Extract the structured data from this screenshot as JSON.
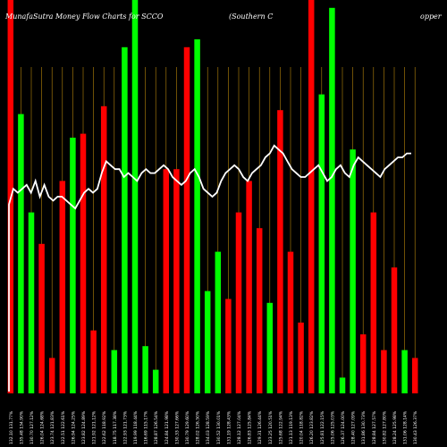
{
  "chart_data": {
    "type": "bar",
    "title": "MunafaSutra  Money Flow  Charts for SCCO",
    "subtitle": "(Southern  C",
    "title_tail": "opper",
    "background": "#000000",
    "colors": {
      "up": "#00ff00",
      "down": "#ff0000",
      "line": "#ffffff",
      "grid": "#b8860b"
    },
    "grid": true,
    "ylim": [
      0,
      100
    ],
    "bars": [
      {
        "label": "132.10 131.77%",
        "value": 100,
        "dir": "down"
      },
      {
        "label": "135.48 134.90%",
        "value": 71,
        "dir": "up"
      },
      {
        "label": "130.70 127.12%",
        "value": 46,
        "dir": "up"
      },
      {
        "label": "126.04 124.68%",
        "value": 38,
        "dir": "down"
      },
      {
        "label": "123.74 121.83%",
        "value": 9,
        "dir": "down"
      },
      {
        "label": "122.51 122.61%",
        "value": 54,
        "dir": "down"
      },
      {
        "label": "126.94 124.25%",
        "value": 65,
        "dir": "up"
      },
      {
        "label": "123.82 124.89%",
        "value": 66,
        "dir": "down"
      },
      {
        "label": "121.92 121.12%",
        "value": 16,
        "dir": "down"
      },
      {
        "label": "122.62 118.92%",
        "value": 73,
        "dir": "down"
      },
      {
        "label": "118.75 117.38%",
        "value": 11,
        "dir": "up"
      },
      {
        "label": "122.93 121.73%",
        "value": 88,
        "dir": "up"
      },
      {
        "label": "119.99 118.44%",
        "value": 100,
        "dir": "up"
      },
      {
        "label": "116.69 115.17%",
        "value": 12,
        "dir": "up"
      },
      {
        "label": "128.87 126.54%",
        "value": 6,
        "dir": "up"
      },
      {
        "label": "124.84 121.98%",
        "value": 57,
        "dir": "down"
      },
      {
        "label": "130.33 127.66%",
        "value": 57,
        "dir": "down"
      },
      {
        "label": "130.79 129.60%",
        "value": 88,
        "dir": "down"
      },
      {
        "label": "128.02 126.50%",
        "value": 90,
        "dir": "up"
      },
      {
        "label": "134.03 128.59%",
        "value": 26,
        "dir": "up"
      },
      {
        "label": "130.52 130.01%",
        "value": 36,
        "dir": "up"
      },
      {
        "label": "131.19 128.43%",
        "value": 24,
        "dir": "down"
      },
      {
        "label": "128.12 127.04%",
        "value": 46,
        "dir": "down"
      },
      {
        "label": "126.83 125.84%",
        "value": 54,
        "dir": "down"
      },
      {
        "label": "129.31 126.44%",
        "value": 42,
        "dir": "down"
      },
      {
        "label": "123.25 120.51%",
        "value": 23,
        "dir": "up"
      },
      {
        "label": "125.68 122.94%",
        "value": 72,
        "dir": "down"
      },
      {
        "label": "121.13 119.13%",
        "value": 36,
        "dir": "down"
      },
      {
        "label": "120.04 118.82%",
        "value": 18,
        "dir": "down"
      },
      {
        "label": "126.20 123.82%",
        "value": 100,
        "dir": "down"
      },
      {
        "label": "125.81 122.15%",
        "value": 76,
        "dir": "up"
      },
      {
        "label": "125.06 125.03%",
        "value": 98,
        "dir": "up"
      },
      {
        "label": "126.37 124.00%",
        "value": 4,
        "dir": "up"
      },
      {
        "label": "128.40 127.09%",
        "value": 62,
        "dir": "up"
      },
      {
        "label": "131.86 130.73%",
        "value": 15,
        "dir": "down"
      },
      {
        "label": "128.84 127.57%",
        "value": 46,
        "dir": "down"
      },
      {
        "label": "130.82 127.80%",
        "value": 11,
        "dir": "down"
      },
      {
        "label": "128.24 125.98%",
        "value": 32,
        "dir": "down"
      },
      {
        "label": "131.06 128.14%",
        "value": 11,
        "dir": "up"
      },
      {
        "label": "130.43 126.37%",
        "value": 9,
        "dir": "down"
      }
    ],
    "line": [
      48,
      52,
      51,
      52,
      53,
      51,
      54,
      50,
      53,
      50,
      49,
      50,
      50,
      49,
      48,
      47,
      49,
      51,
      52,
      51,
      52,
      56,
      59,
      58,
      57,
      57,
      55,
      56,
      55,
      54,
      56,
      57,
      56,
      56,
      57,
      58,
      57,
      55,
      54,
      53,
      54,
      56,
      57,
      55,
      52,
      51,
      50,
      51,
      54,
      56,
      57,
      58,
      57,
      55,
      54,
      56,
      57,
      58,
      60,
      61,
      63,
      62,
      61,
      59,
      57,
      56,
      55,
      55,
      56,
      57,
      58,
      56,
      54,
      55,
      57,
      58,
      56,
      55,
      58,
      60,
      59,
      58,
      57,
      56,
      55,
      57,
      58,
      59,
      60,
      60,
      61,
      61
    ]
  }
}
